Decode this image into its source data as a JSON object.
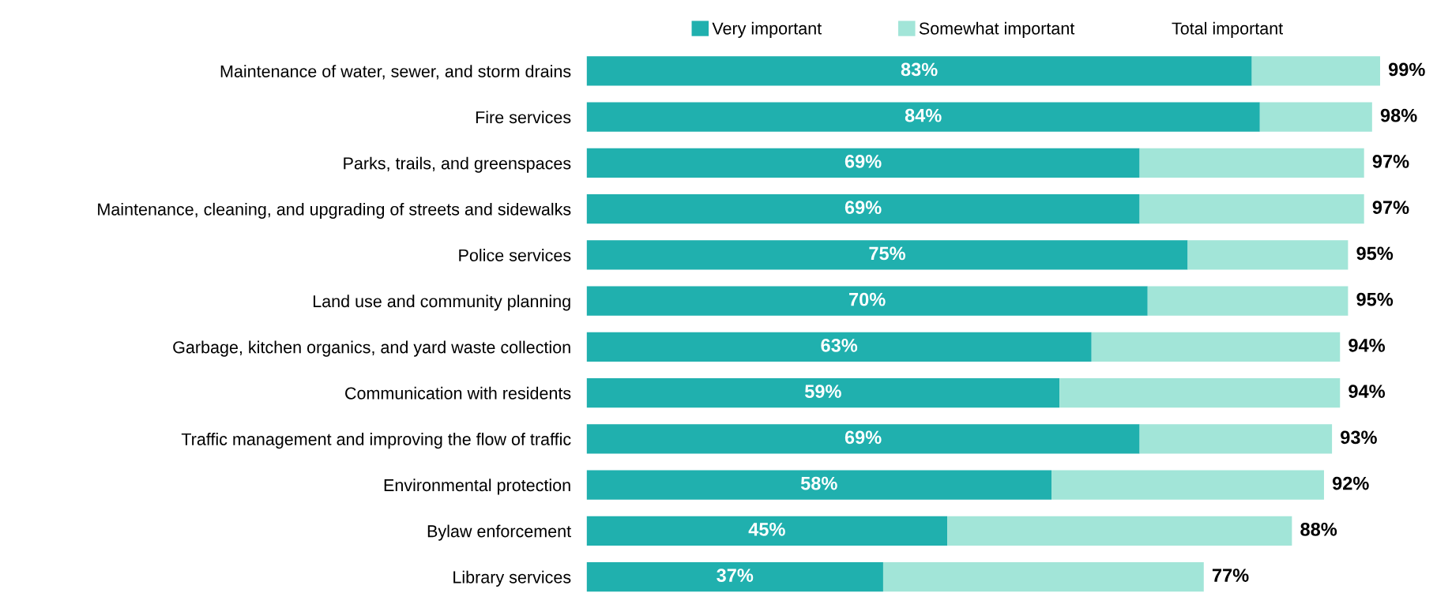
{
  "chart_data": {
    "type": "bar",
    "orientation": "horizontal",
    "stacked": true,
    "legend": "top",
    "grid": false,
    "tick_labels": "y",
    "categories": [
      "Maintenance of water, sewer, and storm drains",
      "Fire services",
      "Parks, trails, and greenspaces",
      "Maintenance, cleaning, and upgrading of streets and sidewalks",
      "Police services",
      "Land use and community planning",
      "Garbage, kitchen organics, and yard waste collection",
      "Communication with residents",
      "Traffic management and improving the flow of traffic",
      "Environmental protection",
      "Bylaw enforcement",
      "Library services"
    ],
    "series": [
      {
        "name": "Very important",
        "color": "#20b0ae",
        "values": [
          83,
          84,
          69,
          69,
          75,
          70,
          63,
          59,
          69,
          58,
          45,
          37
        ],
        "value_labels": [
          "83%",
          "84%",
          "69%",
          "69%",
          "75%",
          "70%",
          "63%",
          "59%",
          "69%",
          "58%",
          "45%",
          "37%"
        ]
      },
      {
        "name": "Somewhat important",
        "color": "#a2e5d8",
        "values": [
          16,
          14,
          28,
          28,
          20,
          25,
          31,
          35,
          24,
          34,
          43,
          40
        ]
      },
      {
        "name": "Total important",
        "values": [
          null,
          null,
          null,
          null,
          null,
          null,
          null,
          null,
          null,
          null,
          null,
          null
        ]
      }
    ],
    "totals": [
      "99%",
      "98%",
      "97%",
      "97%",
      "95%",
      "95%",
      "94%",
      "94%",
      "93%",
      "92%",
      "88%",
      "77%"
    ]
  }
}
